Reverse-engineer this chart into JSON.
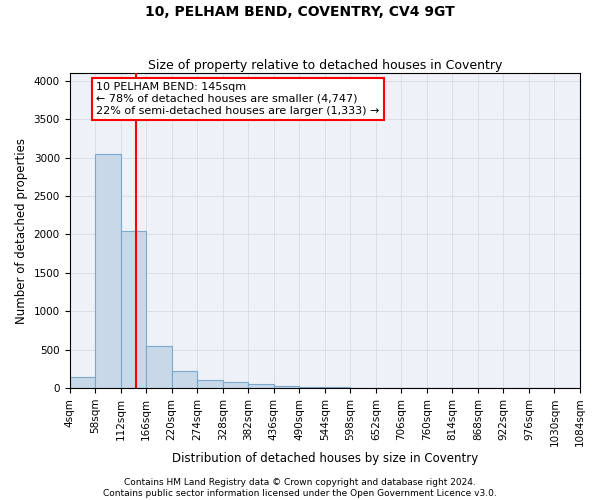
{
  "title": "10, PELHAM BEND, COVENTRY, CV4 9GT",
  "subtitle": "Size of property relative to detached houses in Coventry",
  "xlabel": "Distribution of detached houses by size in Coventry",
  "ylabel": "Number of detached properties",
  "bin_edges": [
    4,
    58,
    112,
    166,
    220,
    274,
    328,
    382,
    436,
    490,
    544,
    598,
    652,
    706,
    760,
    814,
    868,
    922,
    976,
    1030,
    1084
  ],
  "bar_heights": [
    150,
    3050,
    2050,
    550,
    225,
    100,
    75,
    50,
    25,
    10,
    8,
    5,
    4,
    3,
    3,
    2,
    2,
    1,
    1,
    1
  ],
  "bar_color": "#c8d8e8",
  "bar_edgecolor": "#7aa8cc",
  "bar_linewidth": 0.8,
  "vline_x": 145,
  "vline_color": "red",
  "vline_linewidth": 1.5,
  "annotation_text": "10 PELHAM BEND: 145sqm\n← 78% of detached houses are smaller (4,747)\n22% of semi-detached houses are larger (1,333) →",
  "annotation_box_color": "red",
  "ylim": [
    0,
    4100
  ],
  "yticks": [
    0,
    500,
    1000,
    1500,
    2000,
    2500,
    3000,
    3500,
    4000
  ],
  "footnote1": "Contains HM Land Registry data © Crown copyright and database right 2024.",
  "footnote2": "Contains public sector information licensed under the Open Government Licence v3.0.",
  "title_fontsize": 10,
  "subtitle_fontsize": 9,
  "tick_fontsize": 7.5,
  "ylabel_fontsize": 8.5,
  "xlabel_fontsize": 8.5,
  "annotation_fontsize": 8,
  "footnote_fontsize": 6.5,
  "grid_color": "#d0d8e0",
  "plot_bg_color": "#eef2f8",
  "background_color": "#ffffff"
}
